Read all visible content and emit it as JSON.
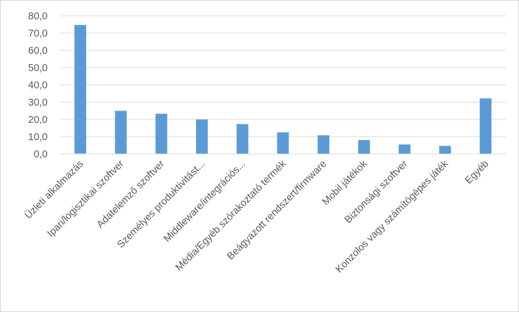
{
  "chart_data": {
    "type": "bar",
    "title": "",
    "xlabel": "",
    "ylabel": "",
    "ylim": [
      0,
      80
    ],
    "ytick_step": 10,
    "ytick_labels": [
      "0,0",
      "10,0",
      "20,0",
      "30,0",
      "40,0",
      "50,0",
      "60,0",
      "70,0",
      "80,0"
    ],
    "grid": true,
    "legend": "none",
    "bar_color": "#5b9bd5",
    "grid_color": "#d9d9d9",
    "categories": [
      "Üzleti alkalmazás",
      "Ipari/logisztikai szoftver",
      "Adatelemző szoftver",
      "Személyes produktivitást...",
      "Middleware/integrációs...",
      "Média/Egyéb szórakoztató termék",
      "Beágyazott rendszert/firmware",
      "Mobil játékok",
      "Biztonsági szoftver",
      "Konzolos vagy számítógépes játék",
      "Egyéb"
    ],
    "values": [
      74.7,
      25.0,
      23.3,
      20.0,
      17.3,
      12.5,
      10.8,
      8.0,
      5.5,
      4.7,
      32.2
    ]
  }
}
